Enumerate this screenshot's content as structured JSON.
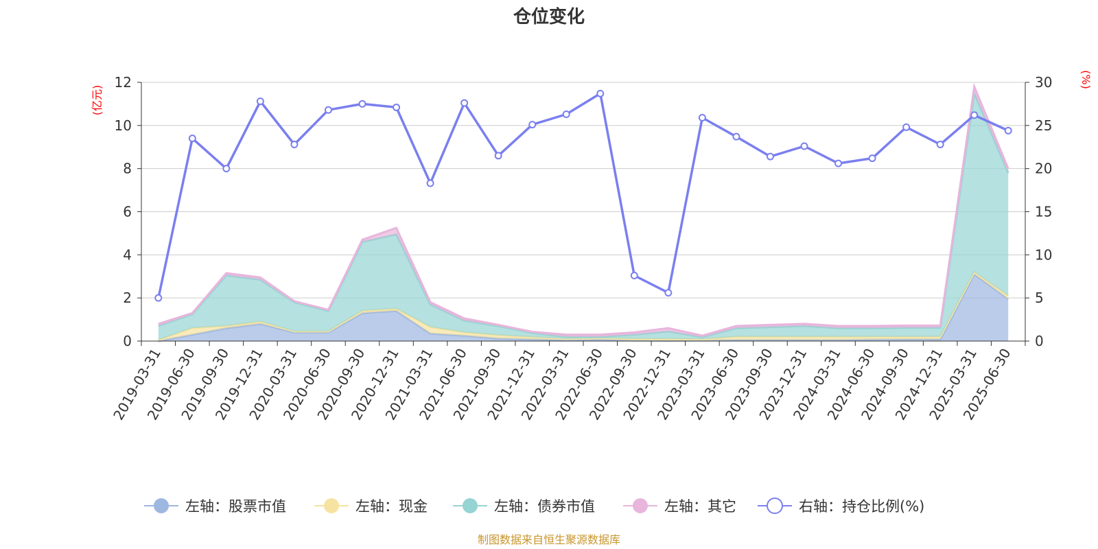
{
  "chart_data": {
    "type": "area",
    "title": "仓位变化",
    "left_axis_unit": "(亿元)",
    "right_axis_unit": "(%)",
    "left_ylim": [
      0,
      12
    ],
    "left_ticks": [
      0,
      2,
      4,
      6,
      8,
      10,
      12
    ],
    "right_ylim": [
      0,
      30
    ],
    "right_ticks": [
      0,
      5,
      10,
      15,
      20,
      25,
      30
    ],
    "categories": [
      "2019-03-31",
      "2019-06-30",
      "2019-09-30",
      "2019-12-31",
      "2020-03-31",
      "2020-06-30",
      "2020-09-30",
      "2020-12-31",
      "2021-03-31",
      "2021-06-30",
      "2021-09-30",
      "2021-12-31",
      "2022-03-31",
      "2022-06-30",
      "2022-09-30",
      "2022-12-31",
      "2023-03-31",
      "2023-06-30",
      "2023-09-30",
      "2023-12-31",
      "2024-03-31",
      "2024-06-30",
      "2024-09-30",
      "2024-12-31",
      "2025-03-31",
      "2025-06-30"
    ],
    "series": [
      {
        "name": "左轴：股票市值",
        "axis": "left",
        "stack": true,
        "color": "#9db7e1",
        "values": [
          0.0,
          0.3,
          0.6,
          0.8,
          0.4,
          0.4,
          1.3,
          1.4,
          0.35,
          0.25,
          0.12,
          0.08,
          0.05,
          0.08,
          0.03,
          0.02,
          0.03,
          0.05,
          0.05,
          0.05,
          0.05,
          0.07,
          0.08,
          0.08,
          3.1,
          1.95
        ]
      },
      {
        "name": "左轴：现金",
        "axis": "left",
        "stack": true,
        "color": "#f6e3a1",
        "values": [
          0.05,
          0.3,
          0.1,
          0.1,
          0.05,
          0.05,
          0.1,
          0.1,
          0.3,
          0.15,
          0.15,
          0.1,
          0.05,
          0.05,
          0.07,
          0.08,
          0.05,
          0.15,
          0.15,
          0.15,
          0.15,
          0.13,
          0.12,
          0.12,
          0.1,
          0.15
        ]
      },
      {
        "name": "左轴：债券市值",
        "axis": "left",
        "stack": true,
        "color": "#95d4d3",
        "values": [
          0.65,
          0.65,
          2.35,
          1.95,
          1.35,
          0.95,
          3.2,
          3.45,
          1.05,
          0.55,
          0.43,
          0.2,
          0.1,
          0.07,
          0.2,
          0.35,
          0.1,
          0.4,
          0.45,
          0.5,
          0.4,
          0.4,
          0.42,
          0.42,
          8.3,
          5.7
        ]
      },
      {
        "name": "左轴：其它",
        "axis": "left",
        "stack": true,
        "color": "#e8b5dc",
        "values": [
          0.1,
          0.05,
          0.1,
          0.1,
          0.05,
          0.05,
          0.1,
          0.3,
          0.1,
          0.1,
          0.05,
          0.05,
          0.1,
          0.1,
          0.1,
          0.15,
          0.07,
          0.1,
          0.1,
          0.1,
          0.1,
          0.1,
          0.1,
          0.1,
          0.3,
          0.2
        ]
      },
      {
        "name": "右轴：持仓比例(%)",
        "axis": "right",
        "type": "line",
        "color": "#7a7fef",
        "values": [
          5.0,
          23.5,
          20.0,
          27.8,
          22.8,
          26.8,
          27.5,
          27.1,
          18.3,
          27.6,
          21.5,
          25.1,
          26.3,
          28.7,
          7.6,
          5.6,
          25.9,
          23.7,
          21.4,
          22.6,
          20.6,
          21.2,
          24.8,
          22.8,
          26.2,
          24.4
        ]
      }
    ],
    "legend_position": "bottom",
    "grid": true
  },
  "source_note": "制图数据来自恒生聚源数据库"
}
